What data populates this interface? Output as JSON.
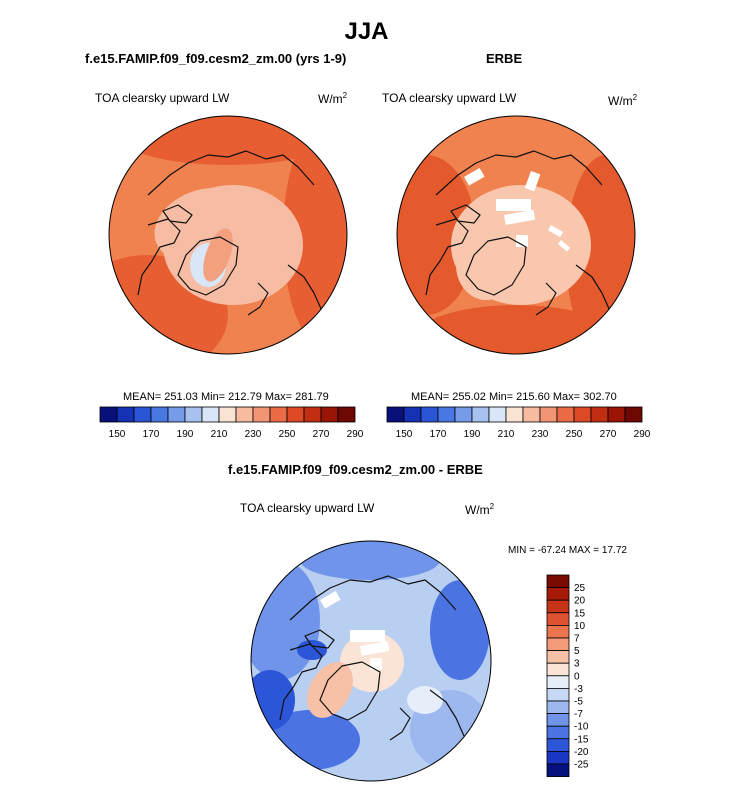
{
  "page_title": "JJA",
  "panels": [
    {
      "id": "model",
      "title": "f.e15.FAMIP.f09_f09.cesm2_zm.00 (yrs 1-9)",
      "left_label": "TOA clearsky upward LW",
      "unit_base": "W/m",
      "unit_exp": "2",
      "stats": "MEAN= 251.03  Min= 212.79  Max= 281.79"
    },
    {
      "id": "obs",
      "title": "ERBE",
      "left_label": "TOA clearsky upward LW",
      "unit_base": "W/m",
      "unit_exp": "2",
      "stats": "MEAN= 255.02  Min= 215.60  Max= 302.70"
    },
    {
      "id": "diff",
      "title": "f.e15.FAMIP.f09_f09.cesm2_zm.00 - ERBE",
      "left_label": "TOA clearsky upward LW",
      "unit_base": "W/m",
      "unit_exp": "2",
      "stats": "MIN = -67.24 MAX =  17.72"
    }
  ],
  "colors": {
    "abs_scale": [
      "#08107a",
      "#1531b4",
      "#2a55d6",
      "#4a78e3",
      "#769be9",
      "#a8c2ef",
      "#d8e6f7",
      "#fbe3d4",
      "#f6bba0",
      "#f29574",
      "#eb6b46",
      "#dd4a25",
      "#c22e12",
      "#9a1505",
      "#6e0802"
    ],
    "diff_scale": [
      "#06107e",
      "#1a36c4",
      "#2c55d8",
      "#4b74e2",
      "#6f94ea",
      "#9db7ef",
      "#c7d8f5",
      "#e6eef9",
      "#fbe3d5",
      "#f7c1a7",
      "#f29a79",
      "#ec7550",
      "#df5231",
      "#c83418",
      "#a61a07",
      "#7a0a02"
    ],
    "model_polar": "#f6bda4",
    "model_high": "#f0824f",
    "model_low": "#e85e33",
    "obs_polar": "#f9c7ae",
    "obs_low": "#e45a2c",
    "diff_base": "#b9cff2"
  },
  "chart_data": [
    {
      "type": "heatmap",
      "title": "f.e15.FAMIP.f09_f09.cesm2_zm.00 (yrs 1-9)",
      "variable": "TOA clearsky upward LW",
      "units": "W/m^2",
      "projection": "north polar stereographic",
      "colorbar_levels": [
        150,
        160,
        170,
        180,
        190,
        200,
        210,
        220,
        230,
        240,
        250,
        260,
        270,
        280,
        290
      ],
      "colorbar_tick_labels": [
        "150",
        "170",
        "190",
        "210",
        "230",
        "250",
        "270",
        "290"
      ],
      "mean": 251.03,
      "min": 212.79,
      "max": 281.79
    },
    {
      "type": "heatmap",
      "title": "ERBE",
      "variable": "TOA clearsky upward LW",
      "units": "W/m^2",
      "projection": "north polar stereographic",
      "colorbar_levels": [
        150,
        160,
        170,
        180,
        190,
        200,
        210,
        220,
        230,
        240,
        250,
        260,
        270,
        280,
        290
      ],
      "colorbar_tick_labels": [
        "150",
        "170",
        "190",
        "210",
        "230",
        "250",
        "270",
        "290"
      ],
      "mean": 255.02,
      "min": 215.6,
      "max": 302.7
    },
    {
      "type": "heatmap",
      "title": "f.e15.FAMIP.f09_f09.cesm2_zm.00 - ERBE",
      "variable": "TOA clearsky upward LW",
      "units": "W/m^2",
      "projection": "north polar stereographic",
      "colorbar_levels": [
        -25,
        -20,
        -15,
        -10,
        -7,
        -5,
        -3,
        0,
        3,
        5,
        7,
        10,
        15,
        20,
        25
      ],
      "colorbar_tick_labels": [
        "25",
        "20",
        "15",
        "10",
        "7",
        "5",
        "3",
        "0",
        "-3",
        "-5",
        "-7",
        "-10",
        "-15",
        "-20",
        "-25"
      ],
      "min": -67.24,
      "max": 17.72
    }
  ]
}
